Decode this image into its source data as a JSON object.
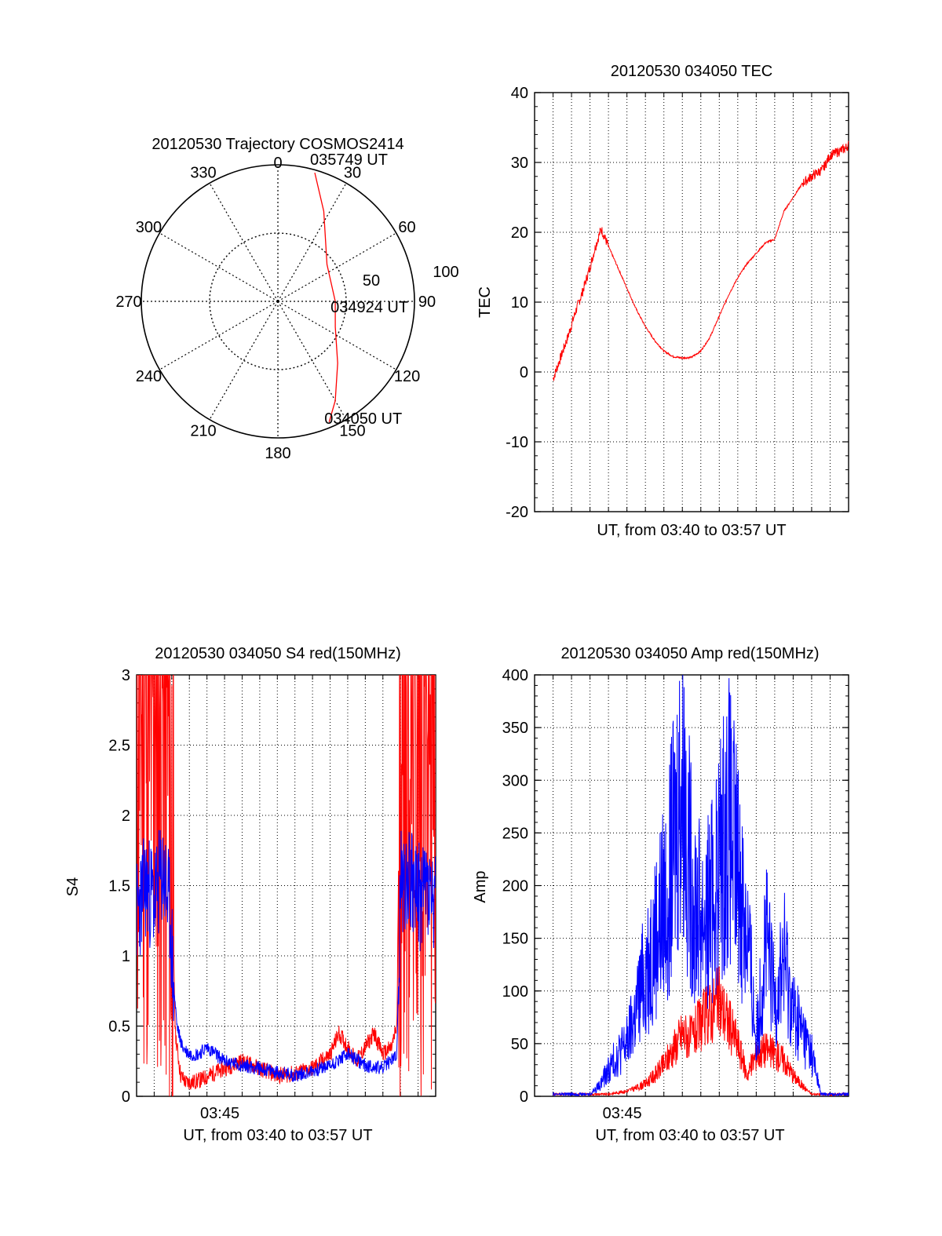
{
  "chart_data": [
    {
      "type": "polar",
      "title": "20120530 Trajectory COSMOS2414",
      "azimuth_labels": [
        "0",
        "30",
        "60",
        "90",
        "120",
        "150",
        "180",
        "210",
        "240",
        "270",
        "300",
        "330"
      ],
      "radial_labels": [
        "50",
        "100"
      ],
      "rlim": [
        0,
        100
      ],
      "grid": true,
      "colors": {
        "trajectory": "#ff0000"
      },
      "series": [
        {
          "values": [
            [
              16,
              98
            ],
            [
              27,
              74
            ],
            [
              53,
              45
            ],
            [
              90,
              42
            ],
            [
              114,
              46
            ],
            [
              136,
              63
            ],
            [
              150,
              84
            ],
            [
              157,
              96
            ]
          ]
        }
      ],
      "annotations": [
        {
          "text": "035749 UT",
          "az": 16,
          "r": 98
        },
        {
          "text": "034924 UT",
          "az": 90,
          "r": 42
        },
        {
          "text": "034050 UT",
          "az": 157,
          "r": 96
        }
      ]
    },
    {
      "type": "line",
      "title": "20120530 034050 TEC",
      "xlabel": "UT, from 03:40 to 03:57 UT",
      "ylabel": "TEC",
      "xlim": [
        0,
        17
      ],
      "ylim": [
        -20,
        40
      ],
      "yticks": [
        "-20",
        "-10",
        "0",
        "10",
        "20",
        "30",
        "40"
      ],
      "grid": true,
      "colors": {
        "series": "#ff0000"
      },
      "series": [
        {
          "x": [
            1.0,
            1.4,
            1.8,
            2.2,
            2.6,
            3.0,
            3.3,
            3.6,
            4.0,
            4.5,
            5.0,
            5.5,
            6.0,
            6.5,
            7.0,
            7.5,
            8.0,
            8.5,
            9.0,
            9.5,
            10.0,
            10.5,
            11.0,
            11.5,
            12.0,
            12.5,
            13.0,
            13.5,
            14.0,
            14.5,
            15.0,
            15.3,
            15.6,
            16.0,
            16.4,
            16.8,
            17.0
          ],
          "y": [
            -1,
            2,
            5,
            8.5,
            11.5,
            15,
            18,
            20.5,
            18,
            15,
            12,
            9,
            6.5,
            4.5,
            3,
            2.2,
            2,
            2.1,
            3,
            5,
            8,
            11,
            13.5,
            15.5,
            17,
            18.5,
            19,
            23,
            25,
            27,
            28,
            28.5,
            29,
            31,
            31.5,
            32,
            32.5
          ]
        }
      ]
    },
    {
      "type": "line",
      "title": "20120530 034050 S4 red(150MHz)",
      "xlabel": "UT, from 03:40 to 03:57 UT",
      "ylabel": "S4",
      "xlim": [
        0,
        17
      ],
      "ylim": [
        0,
        3
      ],
      "xticks": [
        "03:45"
      ],
      "yticks": [
        "0",
        "0.5",
        "1",
        "1.5",
        "2",
        "2.5",
        "3"
      ],
      "grid": true,
      "colors": {
        "red": "#ff0000",
        "blue": "#0000ff"
      },
      "series": [
        {
          "x": [
            0.0,
            0.5,
            1.0,
            1.5,
            1.9,
            2.2,
            2.5,
            2.8,
            3.2,
            3.7,
            4.3,
            5.0,
            6.0,
            7.0,
            8.0,
            9.0,
            10.0,
            11.0,
            11.5,
            12.0,
            12.5,
            13.0,
            13.5,
            14.0,
            14.5,
            14.8,
            15.0,
            15.5,
            16.0,
            16.5,
            17.0
          ],
          "y": [
            3,
            3,
            3,
            3,
            2.2,
            0.45,
            0.15,
            0.1,
            0.1,
            0.12,
            0.16,
            0.2,
            0.25,
            0.2,
            0.15,
            0.16,
            0.2,
            0.3,
            0.45,
            0.35,
            0.25,
            0.35,
            0.45,
            0.3,
            0.35,
            0.5,
            3,
            3,
            3,
            3,
            3
          ]
        },
        {
          "x": [
            0.0,
            0.5,
            1.0,
            1.5,
            1.9,
            2.1,
            2.3,
            2.6,
            3.0,
            3.5,
            4.0,
            5.0,
            6.0,
            7.0,
            8.0,
            9.0,
            10.0,
            11.0,
            12.0,
            13.0,
            14.0,
            14.8,
            15.0,
            15.5,
            16.0,
            16.5,
            17.0
          ],
          "y": [
            1.3,
            1.5,
            1.4,
            1.6,
            1.3,
            0.8,
            0.5,
            0.35,
            0.3,
            0.3,
            0.35,
            0.25,
            0.22,
            0.2,
            0.17,
            0.15,
            0.18,
            0.22,
            0.3,
            0.22,
            0.2,
            0.3,
            1.5,
            1.6,
            1.4,
            1.5,
            1.3
          ]
        }
      ]
    },
    {
      "type": "line",
      "title": "20120530 034050 Amp red(150MHz)",
      "xlabel": "UT, from 03:40 to 03:57 UT",
      "ylabel": "Amp",
      "xlim": [
        0,
        17
      ],
      "ylim": [
        0,
        400
      ],
      "xticks": [
        "03:45"
      ],
      "yticks": [
        "0",
        "50",
        "100",
        "150",
        "200",
        "250",
        "300",
        "350",
        "400"
      ],
      "grid": true,
      "colors": {
        "red": "#ff0000",
        "blue": "#0000ff"
      },
      "series": [
        {
          "x": [
            1.0,
            3.0,
            4.0,
            5.0,
            5.5,
            6.0,
            6.5,
            7.0,
            7.5,
            8.0,
            8.5,
            9.0,
            9.5,
            10.0,
            10.5,
            11.0,
            11.5,
            12.0,
            12.5,
            13.0,
            13.5,
            14.0,
            14.5,
            15.0,
            15.5,
            17.0
          ],
          "y": [
            2,
            2,
            2,
            5,
            8,
            12,
            20,
            30,
            45,
            60,
            55,
            70,
            80,
            90,
            70,
            50,
            20,
            40,
            45,
            40,
            35,
            20,
            10,
            2,
            2,
            2
          ]
        },
        {
          "x": [
            1.0,
            3.0,
            3.5,
            4.0,
            4.5,
            5.0,
            5.5,
            6.0,
            6.5,
            7.0,
            7.5,
            8.0,
            8.5,
            9.0,
            9.5,
            10.0,
            10.5,
            11.0,
            11.5,
            12.0,
            12.5,
            13.0,
            13.5,
            14.0,
            14.5,
            15.0,
            15.5,
            17.0
          ],
          "y": [
            2,
            2,
            10,
            25,
            40,
            50,
            80,
            120,
            150,
            180,
            230,
            310,
            200,
            170,
            180,
            220,
            260,
            210,
            160,
            50,
            150,
            90,
            130,
            80,
            60,
            40,
            2,
            2
          ]
        }
      ]
    }
  ]
}
